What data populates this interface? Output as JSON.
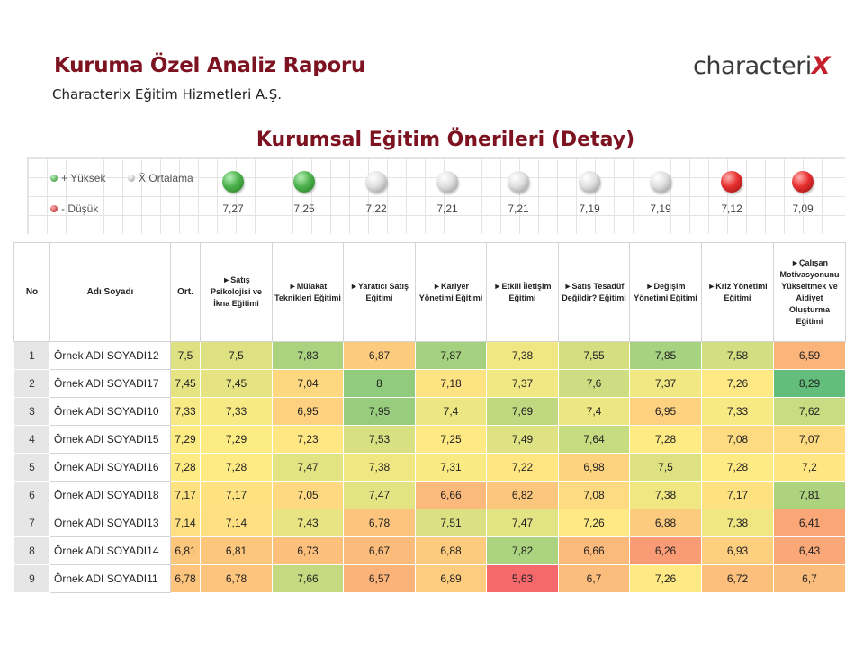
{
  "header": {
    "title": "Kuruma Özel Analiz Raporu",
    "subtitle": "Characterix Eğitim Hizmetleri A.Ş.",
    "logo_text": "characteri",
    "logo_mark": "X",
    "section_title": "Kurumsal Eğitim Önerileri (Detay)"
  },
  "legend": {
    "high": "+ Yüksek",
    "average": "X̄ Ortalama",
    "low": "- Düşük",
    "colors": {
      "high": "#4db24d",
      "average": "#e0e0e0",
      "low": "#e83030"
    }
  },
  "averages": [
    {
      "value": "7,27",
      "status": "green"
    },
    {
      "value": "7,25",
      "status": "green"
    },
    {
      "value": "7,22",
      "status": "white"
    },
    {
      "value": "7,21",
      "status": "white"
    },
    {
      "value": "7,21",
      "status": "white"
    },
    {
      "value": "7,19",
      "status": "white"
    },
    {
      "value": "7,19",
      "status": "white"
    },
    {
      "value": "7,12",
      "status": "red"
    },
    {
      "value": "7,09",
      "status": "red"
    }
  ],
  "table": {
    "headers": {
      "no": "No",
      "name": "Adı Soyadı",
      "avg": "Ort.",
      "trainings": [
        "►Satış Psikolojisi ve İkna Eğitimi",
        "►Mülakat Teknikleri Eğitimi",
        "►Yaratıcı Satış Eğitimi",
        "►Kariyer Yönetimi Eğitimi",
        "►Etkili İletişim Eğitimi",
        "►Satış Tesadüf Değildir? Eğitimi",
        "►Değişim Yönetimi Eğitimi",
        "►Kriz Yönetimi Eğitimi",
        "►Çalışan Motivasyonunu Yükseltmek ve Aidiyet Oluşturma Eğitimi"
      ]
    },
    "rows": [
      {
        "no": "1",
        "name": "Örnek ADI SOYADI12",
        "avg": "7,5",
        "scores": [
          "7,5",
          "7,83",
          "6,87",
          "7,87",
          "7,38",
          "7,55",
          "7,85",
          "7,58",
          "6,59"
        ]
      },
      {
        "no": "2",
        "name": "Örnek ADI SOYADI17",
        "avg": "7,45",
        "scores": [
          "7,45",
          "7,04",
          "8",
          "7,18",
          "7,37",
          "7,6",
          "7,37",
          "7,26",
          "8,29"
        ]
      },
      {
        "no": "3",
        "name": "Örnek ADI SOYADI10",
        "avg": "7,33",
        "scores": [
          "7,33",
          "6,95",
          "7,95",
          "7,4",
          "7,69",
          "7,4",
          "6,95",
          "7,33",
          "7,62"
        ]
      },
      {
        "no": "4",
        "name": "Örnek ADI SOYADI15",
        "avg": "7,29",
        "scores": [
          "7,29",
          "7,23",
          "7,53",
          "7,25",
          "7,49",
          "7,64",
          "7,28",
          "7,08",
          "7,07"
        ]
      },
      {
        "no": "5",
        "name": "Örnek ADI SOYADI16",
        "avg": "7,28",
        "scores": [
          "7,28",
          "7,47",
          "7,38",
          "7,31",
          "7,22",
          "6,98",
          "7,5",
          "7,28",
          "7,2"
        ]
      },
      {
        "no": "6",
        "name": "Örnek ADI SOYADI18",
        "avg": "7,17",
        "scores": [
          "7,17",
          "7,05",
          "7,47",
          "6,66",
          "6,82",
          "7,08",
          "7,38",
          "7,17",
          "7,81"
        ]
      },
      {
        "no": "7",
        "name": "Örnek ADI SOYADI13",
        "avg": "7,14",
        "scores": [
          "7,14",
          "7,43",
          "6,78",
          "7,51",
          "7,47",
          "7,26",
          "6,88",
          "7,38",
          "6,41"
        ]
      },
      {
        "no": "8",
        "name": "Örnek ADI SOYADI14",
        "avg": "6,81",
        "scores": [
          "6,81",
          "6,73",
          "6,67",
          "6,88",
          "7,82",
          "6,66",
          "6,26",
          "6,93",
          "6,43"
        ]
      },
      {
        "no": "9",
        "name": "Örnek ADI SOYADI11",
        "avg": "6,78",
        "scores": [
          "6,78",
          "7,66",
          "6,57",
          "6,89",
          "5,63",
          "6,7",
          "7,26",
          "6,72",
          "6,7"
        ]
      }
    ]
  }
}
